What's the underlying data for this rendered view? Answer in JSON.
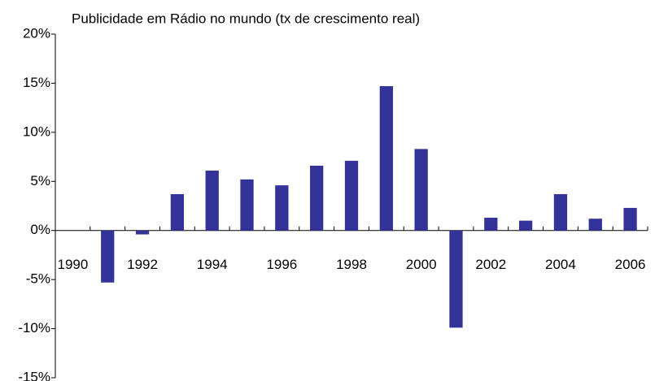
{
  "chart_data": {
    "type": "bar",
    "title": "Publicidade em Rádio no mundo (tx de crescimento real)",
    "categories": [
      "1990",
      null,
      "1992",
      null,
      "1994",
      null,
      "1996",
      null,
      "1998",
      null,
      "2000",
      null,
      "2002",
      null,
      "2004",
      null,
      "2006"
    ],
    "values": [
      null,
      -5.3,
      -0.4,
      3.7,
      6.1,
      5.2,
      4.6,
      6.6,
      7.1,
      14.7,
      8.3,
      -9.9,
      1.3,
      1.0,
      3.7,
      1.2,
      2.3
    ],
    "color": "#333399",
    "ylim": [
      -15,
      20
    ],
    "yticks": [
      {
        "value": -15,
        "label": "-15%"
      },
      {
        "value": -10,
        "label": "-10%"
      },
      {
        "value": -5,
        "label": "-5%"
      },
      {
        "value": 0,
        "label": "0%"
      },
      {
        "value": 5,
        "label": "5%"
      },
      {
        "value": 10,
        "label": "10%"
      },
      {
        "value": 15,
        "label": "15%"
      },
      {
        "value": 20,
        "label": "20%"
      }
    ],
    "grid": false
  }
}
